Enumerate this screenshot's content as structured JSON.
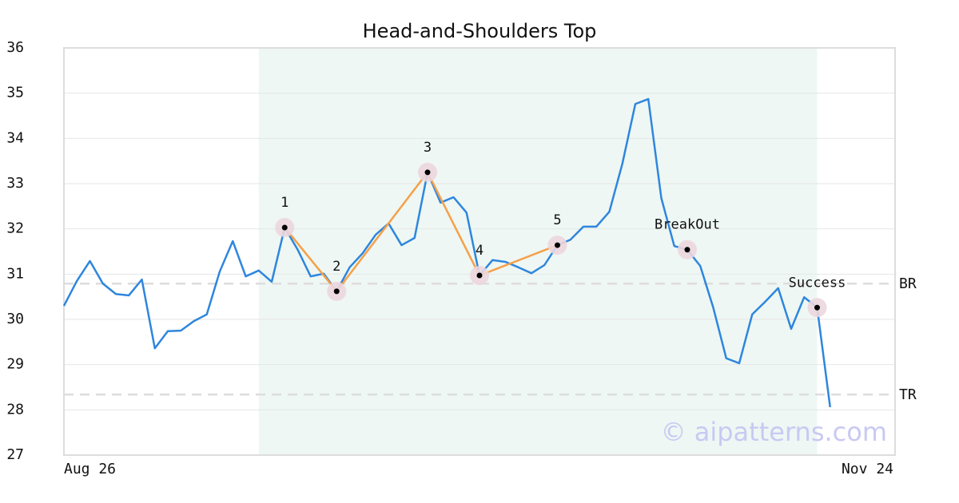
{
  "chart_data": {
    "type": "line",
    "title": "Head-and-Shoulders Top",
    "x": [
      0,
      1,
      2,
      3,
      4,
      5,
      6,
      7,
      8,
      9,
      10,
      11,
      12,
      13,
      14,
      15,
      16,
      17,
      18,
      19,
      20,
      21,
      22,
      23,
      24,
      25,
      26,
      27,
      28,
      29,
      30,
      31,
      32,
      33,
      34,
      35,
      36,
      37,
      38,
      39,
      40,
      41,
      42,
      43,
      44,
      45,
      46,
      47,
      48,
      49,
      50,
      51,
      52,
      53,
      54,
      55,
      56,
      57,
      58,
      59
    ],
    "series": [
      {
        "color": "#2e86de",
        "values": [
          30.3,
          30.85,
          31.29,
          30.79,
          30.56,
          30.53,
          30.88,
          29.36,
          29.74,
          29.75,
          29.96,
          30.11,
          31.06,
          31.73,
          30.95,
          31.08,
          30.83,
          32.03,
          31.54,
          30.95,
          31.01,
          30.62,
          31.15,
          31.46,
          31.87,
          32.12,
          31.64,
          31.8,
          33.25,
          32.58,
          32.7,
          32.36,
          30.97,
          31.31,
          31.27,
          31.15,
          31.02,
          31.2,
          31.64,
          31.76,
          32.05,
          32.05,
          32.38,
          33.44,
          34.76,
          34.87,
          32.68,
          31.62,
          31.54,
          31.18,
          30.26,
          29.14,
          29.03,
          30.11,
          30.39,
          30.69,
          29.79,
          30.49,
          30.26,
          28.06
        ]
      }
    ],
    "xlim": [
      0,
      64
    ],
    "xticks": [
      {
        "value": 0,
        "label": "Aug 26"
      },
      {
        "value": 64,
        "label": "Nov 24"
      }
    ],
    "ylim": [
      27,
      36
    ],
    "yticks": [
      27,
      28,
      29,
      30,
      31,
      32,
      33,
      34,
      35,
      36
    ],
    "grid": true,
    "highlight_x": [
      15,
      58
    ],
    "highlight_color": "#eef7f3",
    "pattern_color": "#f5a04a",
    "pattern_points": [
      {
        "label": "1",
        "x": 17,
        "y": 32.03
      },
      {
        "label": "2",
        "x": 21,
        "y": 30.62
      },
      {
        "label": "3",
        "x": 28,
        "y": 33.25
      },
      {
        "label": "4",
        "x": 32,
        "y": 30.97
      },
      {
        "label": "5",
        "x": 38,
        "y": 31.64
      }
    ],
    "signals": [
      {
        "label": "BreakOut",
        "x": 48,
        "y": 31.54
      },
      {
        "label": "Success",
        "x": 58,
        "y": 30.26
      }
    ],
    "ref_lines": [
      {
        "label": "BR",
        "value": 30.79
      },
      {
        "label": "TR",
        "value": 28.34
      }
    ],
    "watermark": "© aipatterns.com"
  }
}
